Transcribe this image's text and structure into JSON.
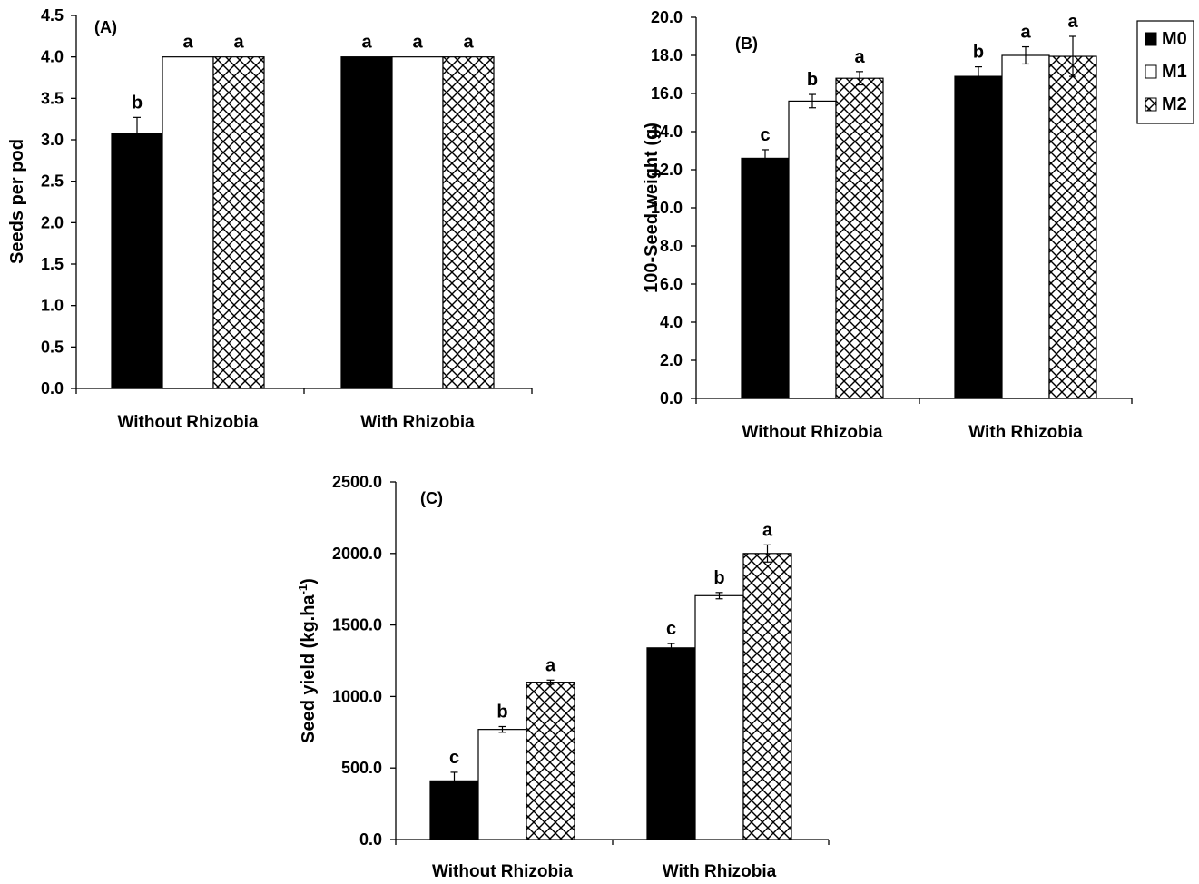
{
  "legend": {
    "entries": [
      {
        "label": "M0",
        "pattern": "solid-black"
      },
      {
        "label": "M1",
        "pattern": "white"
      },
      {
        "label": "M2",
        "pattern": "checker"
      }
    ]
  },
  "colors": {
    "bar_dark": "#000000",
    "bar_light": "#ffffff"
  },
  "chart_data": [
    {
      "type": "bar",
      "panel_label": "(A)",
      "ylabel": "Seeds per pod",
      "ylabel_sup": "",
      "ylabel_tail": "",
      "categories": [
        "Without Rhizobia",
        "With Rhizobia"
      ],
      "ylim": [
        0,
        4.5
      ],
      "ytick_step": 0.5,
      "ytick_decimals": 1,
      "series": [
        {
          "name": "M0",
          "values": [
            3.08,
            4.0
          ],
          "errors": [
            0.19,
            0.0
          ],
          "letters": [
            "b",
            "a"
          ]
        },
        {
          "name": "M1",
          "values": [
            4.0,
            4.0
          ],
          "errors": [
            0.0,
            0.0
          ],
          "letters": [
            "a",
            "a"
          ]
        },
        {
          "name": "M2",
          "values": [
            4.0,
            4.0
          ],
          "errors": [
            0.0,
            0.0
          ],
          "letters": [
            "a",
            "a"
          ]
        }
      ]
    },
    {
      "type": "bar",
      "panel_label": "(B)",
      "ylabel": "100-Seed weight (g)",
      "ylabel_sup": "",
      "ylabel_tail": "",
      "categories": [
        "Without Rhizobia",
        "With Rhizobia"
      ],
      "ylim": [
        0,
        20
      ],
      "ytick_step": 2,
      "ytick_decimals": 1,
      "series": [
        {
          "name": "M0",
          "values": [
            12.6,
            16.9
          ],
          "errors": [
            0.45,
            0.5
          ],
          "letters": [
            "c",
            "b"
          ]
        },
        {
          "name": "M1",
          "values": [
            15.6,
            18.0
          ],
          "errors": [
            0.35,
            0.45
          ],
          "letters": [
            "b",
            "a"
          ]
        },
        {
          "name": "M2",
          "values": [
            16.8,
            17.95
          ],
          "errors": [
            0.35,
            1.05
          ],
          "letters": [
            "a",
            "a"
          ]
        }
      ]
    },
    {
      "type": "bar",
      "panel_label": "(C)",
      "ylabel": "Seed yield (kg.ha",
      "ylabel_sup": "-1",
      "ylabel_tail": ")",
      "categories": [
        "Without Rhizobia",
        "With Rhizobia"
      ],
      "ylim": [
        0,
        2500
      ],
      "ytick_step": 500,
      "ytick_decimals": 1,
      "series": [
        {
          "name": "M0",
          "values": [
            410,
            1340
          ],
          "errors": [
            60,
            30
          ],
          "letters": [
            "c",
            "c"
          ]
        },
        {
          "name": "M1",
          "values": [
            770,
            1705
          ],
          "errors": [
            20,
            22
          ],
          "letters": [
            "b",
            "b"
          ]
        },
        {
          "name": "M2",
          "values": [
            1100,
            2000
          ],
          "errors": [
            15,
            60
          ],
          "letters": [
            "a",
            "a"
          ]
        }
      ]
    }
  ]
}
